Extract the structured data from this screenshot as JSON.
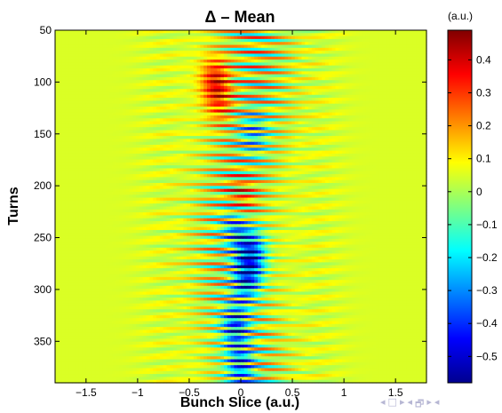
{
  "chart_data": {
    "type": "heatmap",
    "title": "Δ – Mean",
    "xlabel": "Bunch Slice (a.u.)",
    "ylabel": "Turns",
    "xlim": [
      -1.8,
      1.8
    ],
    "ylim": [
      50,
      390
    ],
    "y_reversed": true,
    "xticks": [
      -1.5,
      -1,
      -0.5,
      0,
      0.5,
      1,
      1.5
    ],
    "xtick_labels": [
      "−1.5",
      "−1",
      "−0.5",
      "0",
      "0.5",
      "1",
      "1.5"
    ],
    "yticks": [
      50,
      100,
      150,
      200,
      250,
      300,
      350
    ],
    "ytick_labels": [
      "50",
      "100",
      "150",
      "200",
      "250",
      "300",
      "350"
    ],
    "colorbar": {
      "label": "(a.u.)",
      "range": [
        -0.58,
        0.49
      ],
      "ticks": [
        0.4,
        0.3,
        0.2,
        0.1,
        0,
        -0.1,
        -0.2,
        -0.3,
        -0.4,
        -0.5
      ],
      "tick_labels": [
        "0.4",
        "0.3",
        "0.2",
        "0.1",
        "0",
        "−0.1",
        "−0.2",
        "−0.3",
        "−0.4",
        "−0.5"
      ],
      "colormap": "jet"
    },
    "background_value": 0.05,
    "features": [
      {
        "turn": 98,
        "slice": -0.25,
        "value": 0.4
      },
      {
        "turn": 120,
        "slice": -0.2,
        "value": 0.25
      },
      {
        "turn": 150,
        "slice": 0.12,
        "value": -0.25
      },
      {
        "turn": 215,
        "slice": 0.0,
        "value": 0.3
      },
      {
        "turn": 240,
        "slice": -0.05,
        "value": -0.35
      },
      {
        "turn": 265,
        "slice": 0.1,
        "value": -0.5
      },
      {
        "turn": 290,
        "slice": 0.05,
        "value": -0.45
      },
      {
        "turn": 335,
        "slice": -0.05,
        "value": -0.45
      },
      {
        "turn": 375,
        "slice": 0.0,
        "value": -0.4
      }
    ]
  },
  "navigation": {
    "glyphs": [
      "◂",
      "□",
      "▸",
      "◂",
      "🗗",
      "▸",
      "◂"
    ]
  }
}
